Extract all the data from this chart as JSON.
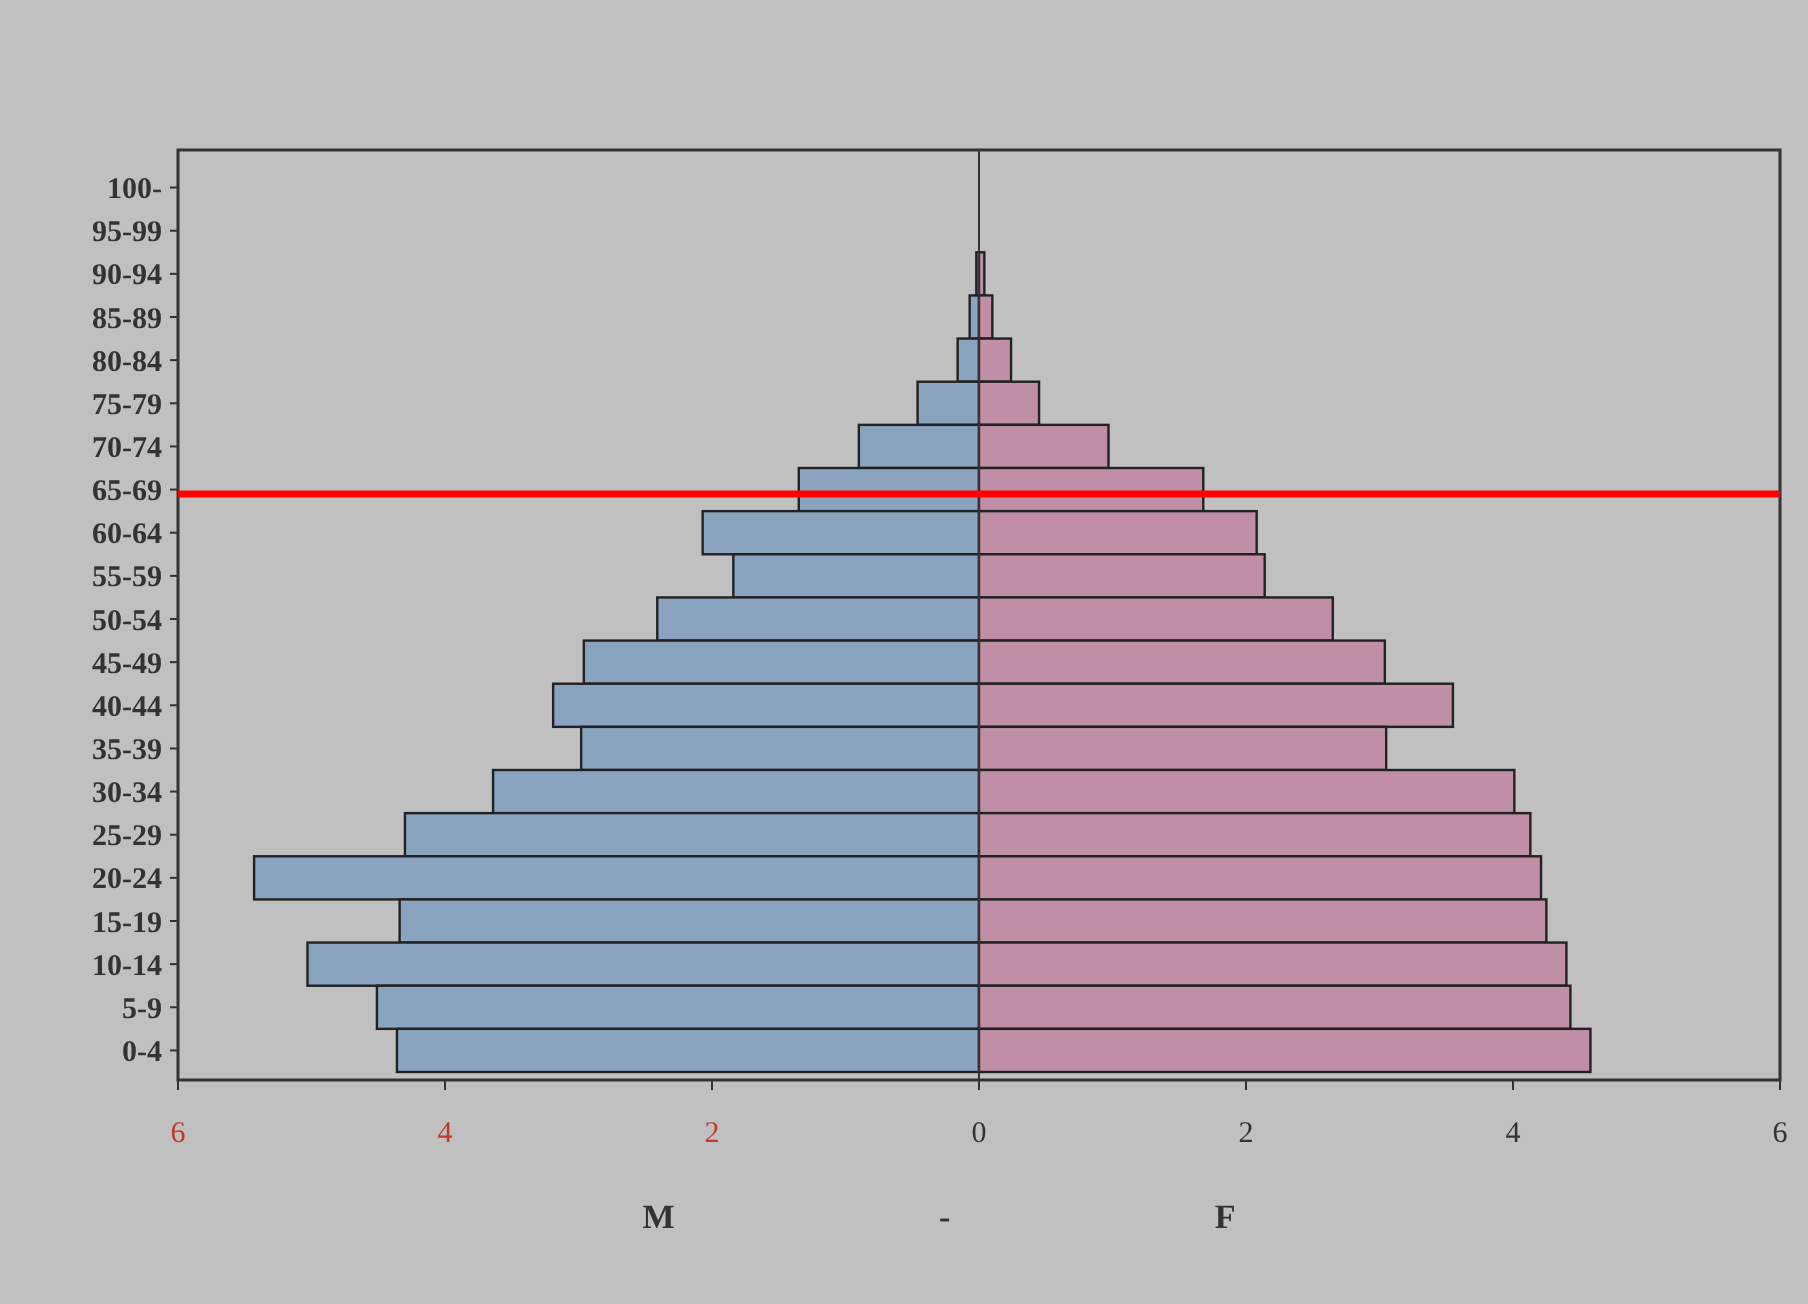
{
  "chart_data": {
    "type": "bar",
    "orientation": "horizontal",
    "stacked": true,
    "categories": [
      "100-",
      "95-99",
      "90-94",
      "85-89",
      "80-84",
      "75-79",
      "70-74",
      "65-69",
      "60-64",
      "55-59",
      "50-54",
      "45-49",
      "40-44",
      "35-39",
      "30-34",
      "25-29",
      "20-24",
      "15-19",
      "10-14",
      "5-9",
      "0-4"
    ],
    "series": [
      {
        "color": "#8aa4c0",
        "values": [
          0,
          0,
          -0.02,
          -0.07,
          -0.16,
          -0.46,
          -0.9,
          -1.35,
          -2.07,
          -1.84,
          -2.41,
          -2.96,
          -3.19,
          -2.98,
          -3.64,
          -4.3,
          -5.43,
          -4.34,
          -5.03,
          -4.51,
          -4.36
        ]
      },
      {
        "color": "#c08ea6",
        "values": [
          0,
          0,
          0.04,
          0.1,
          0.24,
          0.45,
          0.97,
          1.68,
          2.08,
          2.14,
          2.65,
          3.04,
          3.55,
          3.05,
          4.01,
          4.13,
          4.21,
          4.25,
          4.4,
          4.43,
          4.58
        ]
      }
    ],
    "xlim": [
      -6,
      6
    ],
    "xticks": [
      {
        "value": -6,
        "label": "6"
      },
      {
        "value": -4,
        "label": "4"
      },
      {
        "value": -2,
        "label": "2"
      },
      0,
      2,
      4,
      6
    ],
    "xlabel": "M - F",
    "ref_lines": [
      {
        "axis": "y",
        "value": "65-69",
        "color": "#ff0000"
      }
    ]
  }
}
